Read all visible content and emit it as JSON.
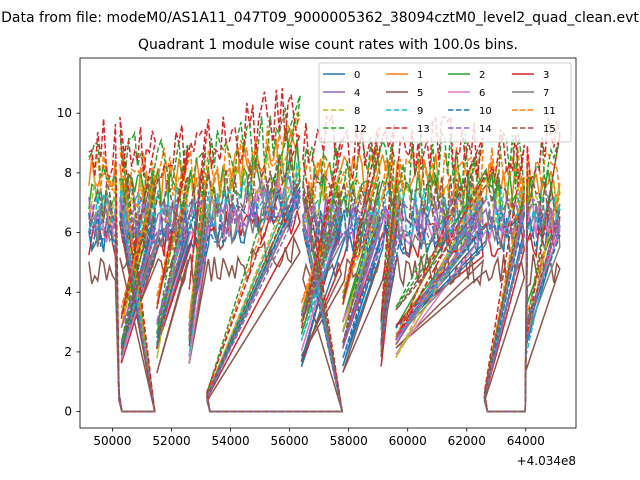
{
  "figure": {
    "suptitle": "Data from file: modeM0/AS1A11_047T09_9000005362_38094cztM0_level2_quad_clean.evt"
  },
  "chart_data": {
    "type": "line",
    "title": "Quadrant 1 module wise count rates with 100.0s bins.",
    "xlabel": "",
    "ylabel": "",
    "x_offset_label": "+4.034e8",
    "xlim": [
      48900,
      65700
    ],
    "ylim": [
      -0.55,
      11.85
    ],
    "x_ticks": [
      50000,
      52000,
      54000,
      56000,
      58000,
      60000,
      62000,
      64000
    ],
    "x_tick_labels": [
      "50000",
      "52000",
      "54000",
      "56000",
      "58000",
      "60000",
      "62000",
      "64000"
    ],
    "y_ticks": [
      0,
      2,
      4,
      6,
      8,
      10
    ],
    "y_tick_labels": [
      "0",
      "2",
      "4",
      "6",
      "8",
      "10"
    ],
    "grid": false,
    "legend_placement": "upper right",
    "legend_columns": 4,
    "segments_x": [
      [
        49200,
        50150
      ],
      [
        50250,
        51450
      ],
      [
        51550,
        52550
      ],
      [
        52650,
        53150
      ],
      [
        53250,
        56350
      ],
      [
        56450,
        57750
      ],
      [
        57850,
        59050
      ],
      [
        59150,
        59550
      ],
      [
        59650,
        62550
      ],
      [
        62650,
        63950
      ],
      [
        64050,
        65150
      ]
    ],
    "gap_x": [
      50220,
      50300,
      51500,
      52600,
      53200,
      56400,
      57800,
      59100,
      59600,
      62600,
      64000
    ],
    "series": [
      {
        "name": "0",
        "level": 5.95,
        "color": "#1f77b4",
        "dash": "solid"
      },
      {
        "name": "1",
        "level": 7.75,
        "color": "#ff7f0e",
        "dash": "solid"
      },
      {
        "name": "2",
        "level": 7.25,
        "color": "#2ca02c",
        "dash": "solid"
      },
      {
        "name": "3",
        "level": 5.85,
        "color": "#d62728",
        "dash": "solid"
      },
      {
        "name": "4",
        "level": 6.55,
        "color": "#9467bd",
        "dash": "solid"
      },
      {
        "name": "5",
        "level": 4.75,
        "color": "#8c564b",
        "dash": "solid"
      },
      {
        "name": "6",
        "level": 6.35,
        "color": "#e377c2",
        "dash": "solid"
      },
      {
        "name": "7",
        "level": 6.15,
        "color": "#7f7f7f",
        "dash": "solid"
      },
      {
        "name": "8",
        "level": 7.05,
        "color": "#bcbd22",
        "dash": "dashed"
      },
      {
        "name": "9",
        "level": 6.75,
        "color": "#17becf",
        "dash": "dashed"
      },
      {
        "name": "10",
        "level": 6.05,
        "color": "#1f77b4",
        "dash": "dashed"
      },
      {
        "name": "11",
        "level": 7.95,
        "color": "#ff7f0e",
        "dash": "dashed"
      },
      {
        "name": "12",
        "level": 8.35,
        "color": "#2ca02c",
        "dash": "dashed"
      },
      {
        "name": "13",
        "level": 8.85,
        "color": "#d62728",
        "dash": "dashed"
      },
      {
        "name": "14",
        "level": 6.45,
        "color": "#9467bd",
        "dash": "dashed"
      },
      {
        "name": "15",
        "level": 7.15,
        "color": "#8c564b",
        "dash": "dashed"
      }
    ]
  }
}
